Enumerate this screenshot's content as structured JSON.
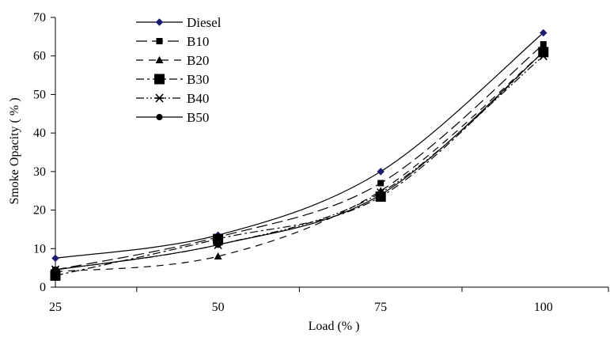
{
  "chart_data": {
    "type": "line",
    "title": "",
    "xlabel": "Load (% )",
    "ylabel": "Smoke Opacity ( % )",
    "x": [
      25,
      50,
      75,
      100
    ],
    "x_tick_labels": [
      "25",
      "50",
      "75",
      "100"
    ],
    "ylim": [
      0,
      70
    ],
    "y_ticks": [
      0,
      10,
      20,
      30,
      40,
      50,
      60,
      70
    ],
    "grid": false,
    "legend_position": "top-left",
    "series": [
      {
        "name": "Diesel",
        "values": [
          7.5,
          13.5,
          30,
          66
        ],
        "marker": "diamond",
        "dash": "solid",
        "color": "#000000",
        "marker_color": "#1a1a6e"
      },
      {
        "name": "B10",
        "values": [
          4.5,
          13,
          27,
          63
        ],
        "marker": "square-small",
        "dash": "long-dash",
        "color": "#000000",
        "marker_color": "#000000"
      },
      {
        "name": "B20",
        "values": [
          4,
          8,
          25,
          61
        ],
        "marker": "triangle",
        "dash": "dash",
        "color": "#000000",
        "marker_color": "#000000"
      },
      {
        "name": "B30",
        "values": [
          3,
          12.5,
          23.5,
          61
        ],
        "marker": "square-large",
        "dash": "dash-dot",
        "color": "#000000",
        "marker_color": "#000000"
      },
      {
        "name": "B40",
        "values": [
          4.5,
          11,
          24.5,
          60
        ],
        "marker": "asterisk",
        "dash": "dash-dot-dot",
        "color": "#000000",
        "marker_color": "#000000"
      },
      {
        "name": "B50",
        "values": [
          4.5,
          11,
          24,
          61
        ],
        "marker": "circle",
        "dash": "solid",
        "color": "#000000",
        "marker_color": "#000000"
      }
    ]
  }
}
